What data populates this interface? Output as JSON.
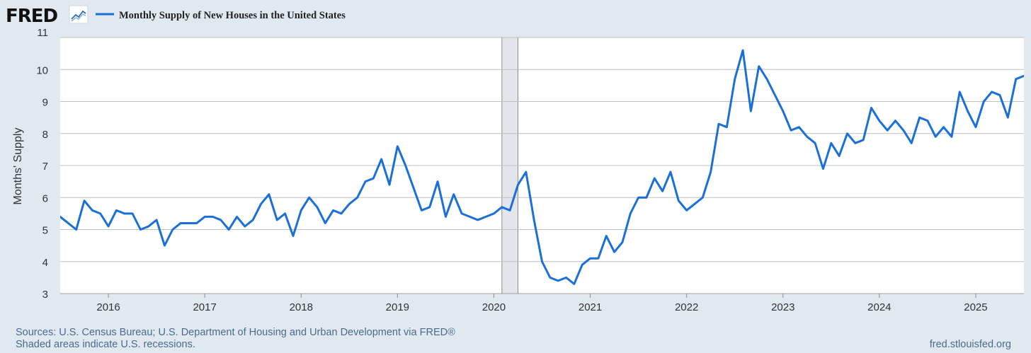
{
  "branding": {
    "logo": "FRED",
    "graph_icon": "graph-icon"
  },
  "colors": {
    "series": "#1a6fd9",
    "recession": "#e2e5ea",
    "grid": "#bfbfbf",
    "background": "#e1e9f0"
  },
  "footer": {
    "sources": "Sources: U.S. Census Bureau; U.S. Department of Housing and Urban Development via FRED®",
    "shading_note": "Shaded areas indicate U.S. recessions.",
    "site": "fred.stlouisfed.org"
  },
  "chart_data": {
    "type": "line",
    "title": "Monthly Supply of New Houses in the United States",
    "xlabel": "",
    "ylabel": "Months' Supply",
    "ylim": [
      3,
      11
    ],
    "yticks": [
      3,
      4,
      5,
      6,
      7,
      8,
      9,
      10,
      11
    ],
    "xlim": [
      2015.5,
      2025.5
    ],
    "xticks": [
      "2016",
      "2017",
      "2018",
      "2019",
      "2020",
      "2021",
      "2022",
      "2023",
      "2024",
      "2025"
    ],
    "grid": true,
    "legend": "top-left",
    "recessions": [
      {
        "start": "2020-02",
        "end": "2020-04"
      }
    ],
    "series": [
      {
        "name": "Monthly Supply of New Houses in the United States",
        "start": "2015-07",
        "frequency": "monthly",
        "values": [
          5.4,
          5.2,
          5.0,
          5.9,
          5.6,
          5.5,
          5.1,
          5.6,
          5.5,
          5.5,
          5.0,
          5.1,
          5.3,
          4.5,
          5.0,
          5.2,
          5.2,
          5.2,
          5.4,
          5.4,
          5.3,
          5.0,
          5.4,
          5.1,
          5.3,
          5.8,
          6.1,
          5.3,
          5.5,
          4.8,
          5.6,
          6.0,
          5.7,
          5.2,
          5.6,
          5.5,
          5.8,
          6.0,
          6.5,
          6.6,
          7.2,
          6.4,
          7.6,
          7.0,
          6.3,
          5.6,
          5.7,
          6.5,
          5.4,
          6.1,
          5.5,
          5.4,
          5.3,
          5.4,
          5.5,
          5.7,
          5.6,
          6.4,
          6.8,
          5.3,
          4.0,
          3.5,
          3.4,
          3.5,
          3.3,
          3.9,
          4.1,
          4.1,
          4.8,
          4.3,
          4.6,
          5.5,
          6.0,
          6.0,
          6.6,
          6.2,
          6.8,
          5.9,
          5.6,
          5.8,
          6.0,
          6.8,
          8.3,
          8.2,
          9.7,
          10.6,
          8.7,
          10.1,
          9.7,
          9.2,
          8.7,
          8.1,
          8.2,
          7.9,
          7.7,
          6.9,
          7.7,
          7.3,
          8.0,
          7.7,
          7.8,
          8.8,
          8.4,
          8.1,
          8.4,
          8.1,
          7.7,
          8.5,
          8.4,
          7.9,
          8.2,
          7.9,
          9.3,
          8.7,
          8.2,
          9.0,
          9.3,
          9.2,
          8.5,
          9.7,
          9.8
        ]
      }
    ]
  }
}
